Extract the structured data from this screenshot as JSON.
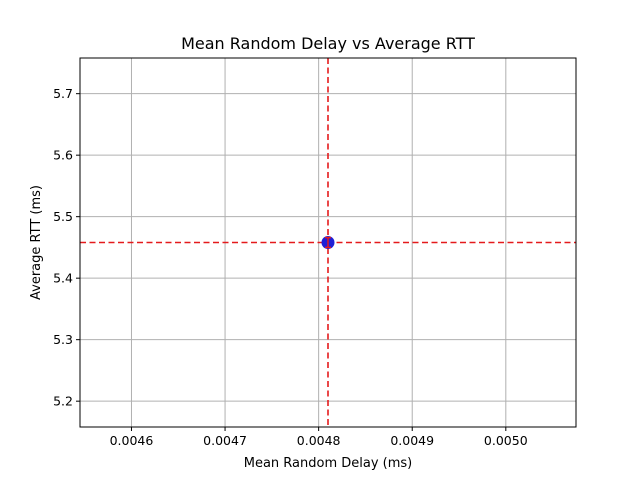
{
  "chart_data": {
    "type": "scatter",
    "title": "Mean Random Delay vs Average RTT",
    "xlabel": "Mean Random Delay (ms)",
    "ylabel": "Average RTT (ms)",
    "xlim": [
      0.004545,
      0.005075
    ],
    "ylim": [
      5.158,
      5.758
    ],
    "x_ticks": [
      0.0046,
      0.0047,
      0.0048,
      0.0049,
      0.005
    ],
    "x_tick_labels": [
      "0.0046",
      "0.0047",
      "0.0048",
      "0.0049",
      "0.0050"
    ],
    "y_ticks": [
      5.2,
      5.3,
      5.4,
      5.5,
      5.6,
      5.7
    ],
    "y_tick_labels": [
      "5.2",
      "5.3",
      "5.4",
      "5.5",
      "5.6",
      "5.7"
    ],
    "grid": true,
    "points": [
      {
        "x": 0.00481,
        "y": 5.458
      }
    ],
    "error_bars": [
      {
        "x": 0.00481,
        "y": 5.458,
        "yerr": 0.008
      }
    ],
    "reference_lines": [
      {
        "orientation": "vertical",
        "value": 0.00481,
        "style": "dashed",
        "color": "#e41a1c"
      },
      {
        "orientation": "horizontal",
        "value": 5.458,
        "style": "dashed",
        "color": "#e41a1c"
      }
    ],
    "colors": {
      "point": "#1f1fd6",
      "reference": "#e41a1c",
      "grid": "#b0b0b0",
      "axis": "#000000"
    }
  }
}
